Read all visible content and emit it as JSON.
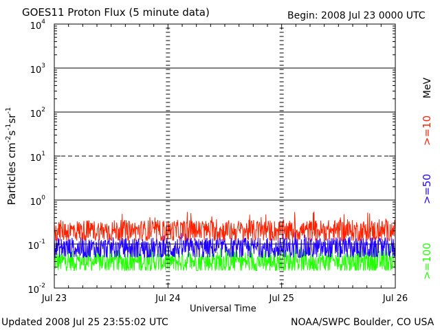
{
  "header": {
    "title": "GOES11 Proton Flux (5 minute data)",
    "begin": "Begin: 2008 Jul 23 0000 UTC"
  },
  "footer": {
    "updated": "Updated 2008 Jul 25 23:55:02 UTC",
    "credit": "NOAA/SWPC Boulder, CO USA"
  },
  "colors": {
    "ge10": "#ff2000",
    "ge50": "#2000ff",
    "ge100": "#20ff00",
    "axes": "#000000"
  },
  "chart_data": {
    "type": "line",
    "title": "GOES11 Proton Flux (5 minute data)",
    "xlabel": "Universal Time",
    "ylabel": "Particles cm⁻²s⁻¹sr⁻¹",
    "ylabel_parts": [
      "Particles cm",
      "-2",
      "s",
      "-1",
      "sr",
      "-1"
    ],
    "y_scale": "log",
    "ylim": [
      0.01,
      10000
    ],
    "y_ticks": [
      {
        "value": 0.01,
        "base": "10",
        "exp": "-2"
      },
      {
        "value": 0.1,
        "base": "10",
        "exp": "-1"
      },
      {
        "value": 1,
        "base": "10",
        "exp": "0"
      },
      {
        "value": 10,
        "base": "10",
        "exp": "1"
      },
      {
        "value": 100,
        "base": "10",
        "exp": "2"
      },
      {
        "value": 1000,
        "base": "10",
        "exp": "3"
      },
      {
        "value": 10000,
        "base": "10",
        "exp": "4"
      }
    ],
    "reference_lines": [
      {
        "value": 0.1,
        "style": "solid"
      },
      {
        "value": 1,
        "style": "solid"
      },
      {
        "value": 10,
        "style": "dashed"
      },
      {
        "value": 100,
        "style": "solid"
      },
      {
        "value": 1000,
        "style": "solid"
      }
    ],
    "xlim": [
      "2008-07-23",
      "2008-07-26"
    ],
    "x_ticks": [
      {
        "value": "2008-07-23",
        "label": "Jul 23"
      },
      {
        "value": "2008-07-24",
        "label": "Jul 24"
      },
      {
        "value": "2008-07-25",
        "label": "Jul 25"
      },
      {
        "value": "2008-07-26",
        "label": "Jul 26"
      }
    ],
    "x_interval_minutes": 5,
    "legend_placement": "right",
    "energy_unit": "MeV",
    "series": [
      {
        "name": ">=10",
        "color": "#ff2000",
        "typical": 0.2,
        "low": 0.12,
        "high": 0.55
      },
      {
        "name": ">=50",
        "color": "#2000ff",
        "typical": 0.08,
        "low": 0.05,
        "high": 0.2
      },
      {
        "name": ">=100",
        "color": "#20ff00",
        "typical": 0.04,
        "low": 0.025,
        "high": 0.1
      }
    ]
  }
}
